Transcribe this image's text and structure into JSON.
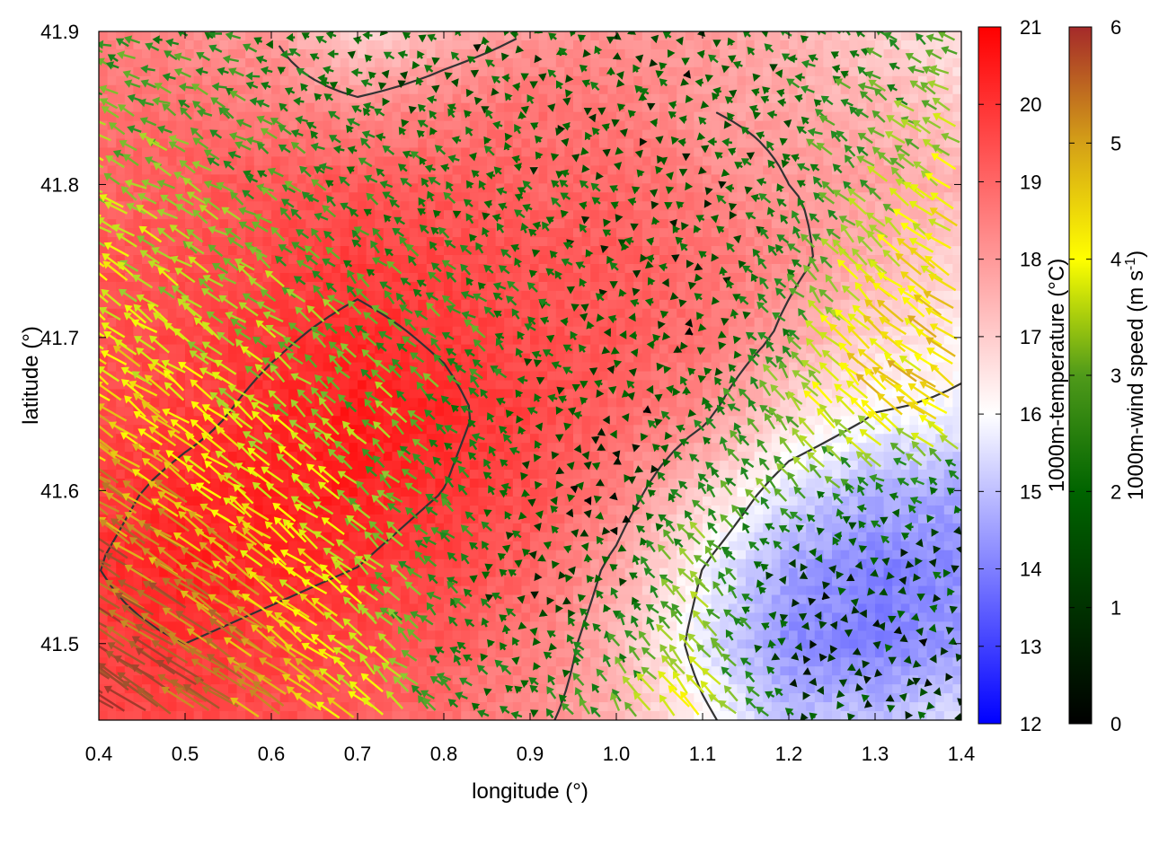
{
  "chart_data": {
    "type": "heatmap",
    "title": "",
    "xlabel": "longitude (°)",
    "ylabel": "latitude (°)",
    "xlim": [
      0.4,
      1.4
    ],
    "ylim": [
      41.45,
      41.9
    ],
    "xticks": [
      "0.4",
      "0.5",
      "0.6",
      "0.7",
      "0.8",
      "0.9",
      "1.0",
      "1.1",
      "1.2",
      "1.3",
      "1.4"
    ],
    "yticks": [
      "41.5",
      "41.6",
      "41.7",
      "41.8",
      "41.9"
    ],
    "grid": false,
    "temperature_colorbar": {
      "label": "1000m-temperature (°C)",
      "range": [
        12,
        21
      ],
      "ticks": [
        "12",
        "13",
        "14",
        "15",
        "16",
        "17",
        "18",
        "19",
        "20",
        "21"
      ],
      "colors": [
        "#0000ff",
        "#ffffff",
        "#ff0000"
      ]
    },
    "wind_colorbar": {
      "label_main": "1000m-wind speed (m s",
      "label_sup": "-1",
      "label_end": ")",
      "range": [
        0,
        6
      ],
      "ticks": [
        "0",
        "1",
        "2",
        "3",
        "4",
        "5",
        "6"
      ],
      "colors": [
        "#000000",
        "#006400",
        "#228b22",
        "#9acd32",
        "#ffff00",
        "#daa520",
        "#a0522d",
        "#a52a2a"
      ]
    },
    "temperature_field": {
      "description_values": "approximate gridded 1000m temperature (°C), rows from north (41.9) to south (41.45), columns from west (0.4) to east (1.4)",
      "lon": [
        0.4,
        0.5,
        0.6,
        0.7,
        0.8,
        0.9,
        1.0,
        1.1,
        1.2,
        1.3,
        1.4
      ],
      "lat": [
        41.9,
        41.85,
        41.8,
        41.75,
        41.7,
        41.65,
        41.6,
        41.55,
        41.5,
        41.45
      ],
      "values": [
        [
          18.5,
          18.2,
          18.0,
          16.8,
          17.5,
          18.0,
          18.2,
          18.0,
          17.5,
          17.0,
          16.5
        ],
        [
          18.8,
          18.8,
          18.5,
          18.2,
          18.5,
          18.8,
          18.6,
          18.0,
          17.8,
          17.5,
          17.0
        ],
        [
          19.0,
          19.2,
          19.3,
          19.3,
          19.2,
          19.0,
          19.0,
          18.5,
          18.0,
          17.8,
          17.5
        ],
        [
          19.3,
          19.4,
          19.6,
          19.8,
          19.6,
          19.3,
          19.2,
          18.8,
          18.2,
          17.5,
          16.8
        ],
        [
          19.4,
          19.6,
          19.9,
          20.2,
          19.9,
          19.5,
          19.2,
          18.8,
          17.8,
          16.8,
          16.3
        ],
        [
          19.5,
          19.8,
          20.2,
          20.5,
          20.2,
          19.6,
          19.0,
          18.2,
          16.8,
          16.0,
          15.8
        ],
        [
          19.8,
          20.2,
          20.4,
          20.4,
          20.0,
          19.4,
          18.5,
          17.0,
          15.5,
          14.8,
          14.6
        ],
        [
          20.0,
          20.4,
          20.2,
          20.0,
          19.6,
          19.0,
          17.8,
          16.0,
          14.6,
          14.0,
          14.2
        ],
        [
          19.8,
          20.0,
          19.8,
          19.6,
          19.2,
          18.6,
          17.5,
          15.6,
          14.2,
          14.0,
          14.5
        ],
        [
          19.5,
          19.6,
          19.4,
          19.2,
          18.8,
          18.2,
          17.5,
          16.2,
          15.0,
          15.0,
          15.5
        ]
      ]
    },
    "wind_field": {
      "description_values": "approximate wind vectors (u, v in m/s) on the same grid as temperature_field",
      "u": [
        [
          -1.5,
          -1.6,
          -1.2,
          -0.8,
          -0.6,
          -0.5,
          -0.4,
          -0.6,
          -1.0,
          -1.4,
          -1.6
        ],
        [
          -2.0,
          -1.8,
          -1.4,
          -1.0,
          -0.8,
          -0.6,
          -0.5,
          -0.6,
          -1.0,
          -1.6,
          -2.2
        ],
        [
          -2.4,
          -2.0,
          -1.6,
          -1.2,
          -1.0,
          -0.8,
          -0.6,
          -0.6,
          -1.0,
          -1.8,
          -2.6
        ],
        [
          -2.6,
          -2.2,
          -1.8,
          -1.4,
          -1.2,
          -1.0,
          -0.6,
          -0.5,
          -1.0,
          -2.2,
          -3.0
        ],
        [
          -2.8,
          -2.4,
          -2.0,
          -1.6,
          -1.4,
          -1.0,
          -0.6,
          -0.4,
          -1.2,
          -2.6,
          -3.2
        ],
        [
          -3.2,
          -2.8,
          -2.2,
          -1.8,
          -1.4,
          -0.8,
          -0.4,
          -0.6,
          -1.6,
          -2.8,
          -3.4
        ],
        [
          -3.8,
          -3.2,
          -2.6,
          -2.0,
          -1.4,
          -0.6,
          -0.2,
          -1.0,
          -1.4,
          -1.2,
          -0.8
        ],
        [
          -4.2,
          -3.8,
          -3.0,
          -2.2,
          -1.2,
          -0.4,
          -0.4,
          -1.6,
          -0.4,
          -0.2,
          -0.6
        ],
        [
          -4.6,
          -4.2,
          -3.4,
          -2.4,
          -1.2,
          -0.6,
          -0.8,
          -1.8,
          -0.2,
          -0.2,
          -0.4
        ],
        [
          -4.8,
          -4.4,
          -3.6,
          -2.6,
          -1.4,
          -0.8,
          -1.4,
          -2.4,
          -0.6,
          -0.2,
          -0.4
        ]
      ],
      "v": [
        [
          0.6,
          0.4,
          0.2,
          0.3,
          0.5,
          0.6,
          0.5,
          0.4,
          0.6,
          0.8,
          1.0
        ],
        [
          1.0,
          0.9,
          0.7,
          0.6,
          0.6,
          0.6,
          0.5,
          0.4,
          0.6,
          1.0,
          1.2
        ],
        [
          1.4,
          1.2,
          1.0,
          0.9,
          0.8,
          0.7,
          0.5,
          0.4,
          0.8,
          1.4,
          1.6
        ],
        [
          1.8,
          1.6,
          1.4,
          1.2,
          1.0,
          0.8,
          0.5,
          0.4,
          1.2,
          2.0,
          2.0
        ],
        [
          2.0,
          1.8,
          1.6,
          1.4,
          1.2,
          0.8,
          0.4,
          0.4,
          1.4,
          2.4,
          2.2
        ],
        [
          2.2,
          2.0,
          1.8,
          1.6,
          1.2,
          0.6,
          0.3,
          0.8,
          1.8,
          2.4,
          2.0
        ],
        [
          2.4,
          2.2,
          2.0,
          1.8,
          1.2,
          0.5,
          0.3,
          1.4,
          1.4,
          0.8,
          0.4
        ],
        [
          2.6,
          2.4,
          2.2,
          1.8,
          1.0,
          0.4,
          0.6,
          1.8,
          0.3,
          0.2,
          0.4
        ],
        [
          2.8,
          2.6,
          2.4,
          2.0,
          1.0,
          0.6,
          1.2,
          2.0,
          0.2,
          0.2,
          0.3
        ],
        [
          3.0,
          2.8,
          2.6,
          2.2,
          1.2,
          0.8,
          1.8,
          2.4,
          0.6,
          0.2,
          0.3
        ]
      ]
    }
  }
}
